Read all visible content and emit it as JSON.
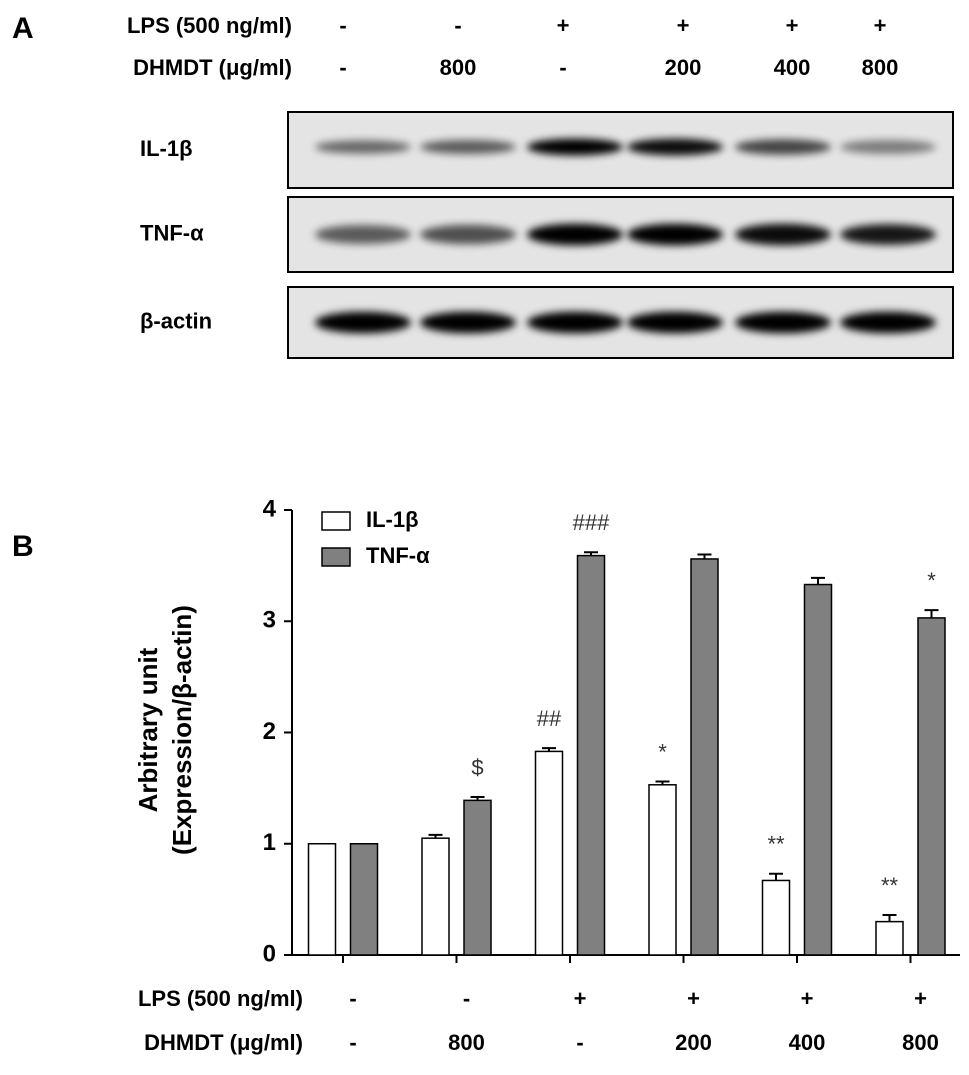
{
  "panel_a": {
    "label": "A",
    "rows": [
      {
        "label": "LPS (500 ng/ml)",
        "values": [
          "-",
          "-",
          "+",
          "+",
          "+",
          "+"
        ]
      },
      {
        "label": "DHMDT (μg/ml)",
        "values": [
          "-",
          "800",
          "-",
          "200",
          "400",
          "800"
        ]
      }
    ],
    "blots": [
      "IL-1β",
      "TNF-α",
      "β-actin"
    ]
  },
  "chart_data": {
    "type": "bar",
    "panel_label": "B",
    "y_label": [
      "Arbitrary unit",
      "(Expression/β-actin)"
    ],
    "categories": [
      null,
      null,
      null,
      null,
      null,
      null
    ],
    "x_rows": [
      {
        "label": "LPS (500 ng/ml)",
        "values": [
          "-",
          "-",
          "+",
          "+",
          "+",
          "+"
        ]
      },
      {
        "label": "DHMDT (μg/ml)",
        "values": [
          "-",
          "800",
          "-",
          "200",
          "400",
          "800"
        ]
      }
    ],
    "series": [
      {
        "name": "IL-1β",
        "color": "#ffffff",
        "values": [
          1.0,
          1.05,
          1.83,
          1.53,
          0.67,
          0.3
        ],
        "errors": [
          0,
          0.03,
          0.03,
          0.03,
          0.06,
          0.06
        ],
        "annotations": [
          null,
          null,
          "##",
          "*",
          "**",
          "**"
        ]
      },
      {
        "name": "TNF-α",
        "color": "#808080",
        "values": [
          1.0,
          1.39,
          3.59,
          3.56,
          3.33,
          3.03
        ],
        "errors": [
          0,
          0.03,
          0.03,
          0.04,
          0.06,
          0.07
        ],
        "annotations": [
          null,
          "$",
          "###",
          null,
          null,
          "*"
        ]
      }
    ],
    "ylim": [
      0,
      4
    ],
    "yticks": [
      0,
      1,
      2,
      3,
      4
    ],
    "legend": "upper left"
  }
}
